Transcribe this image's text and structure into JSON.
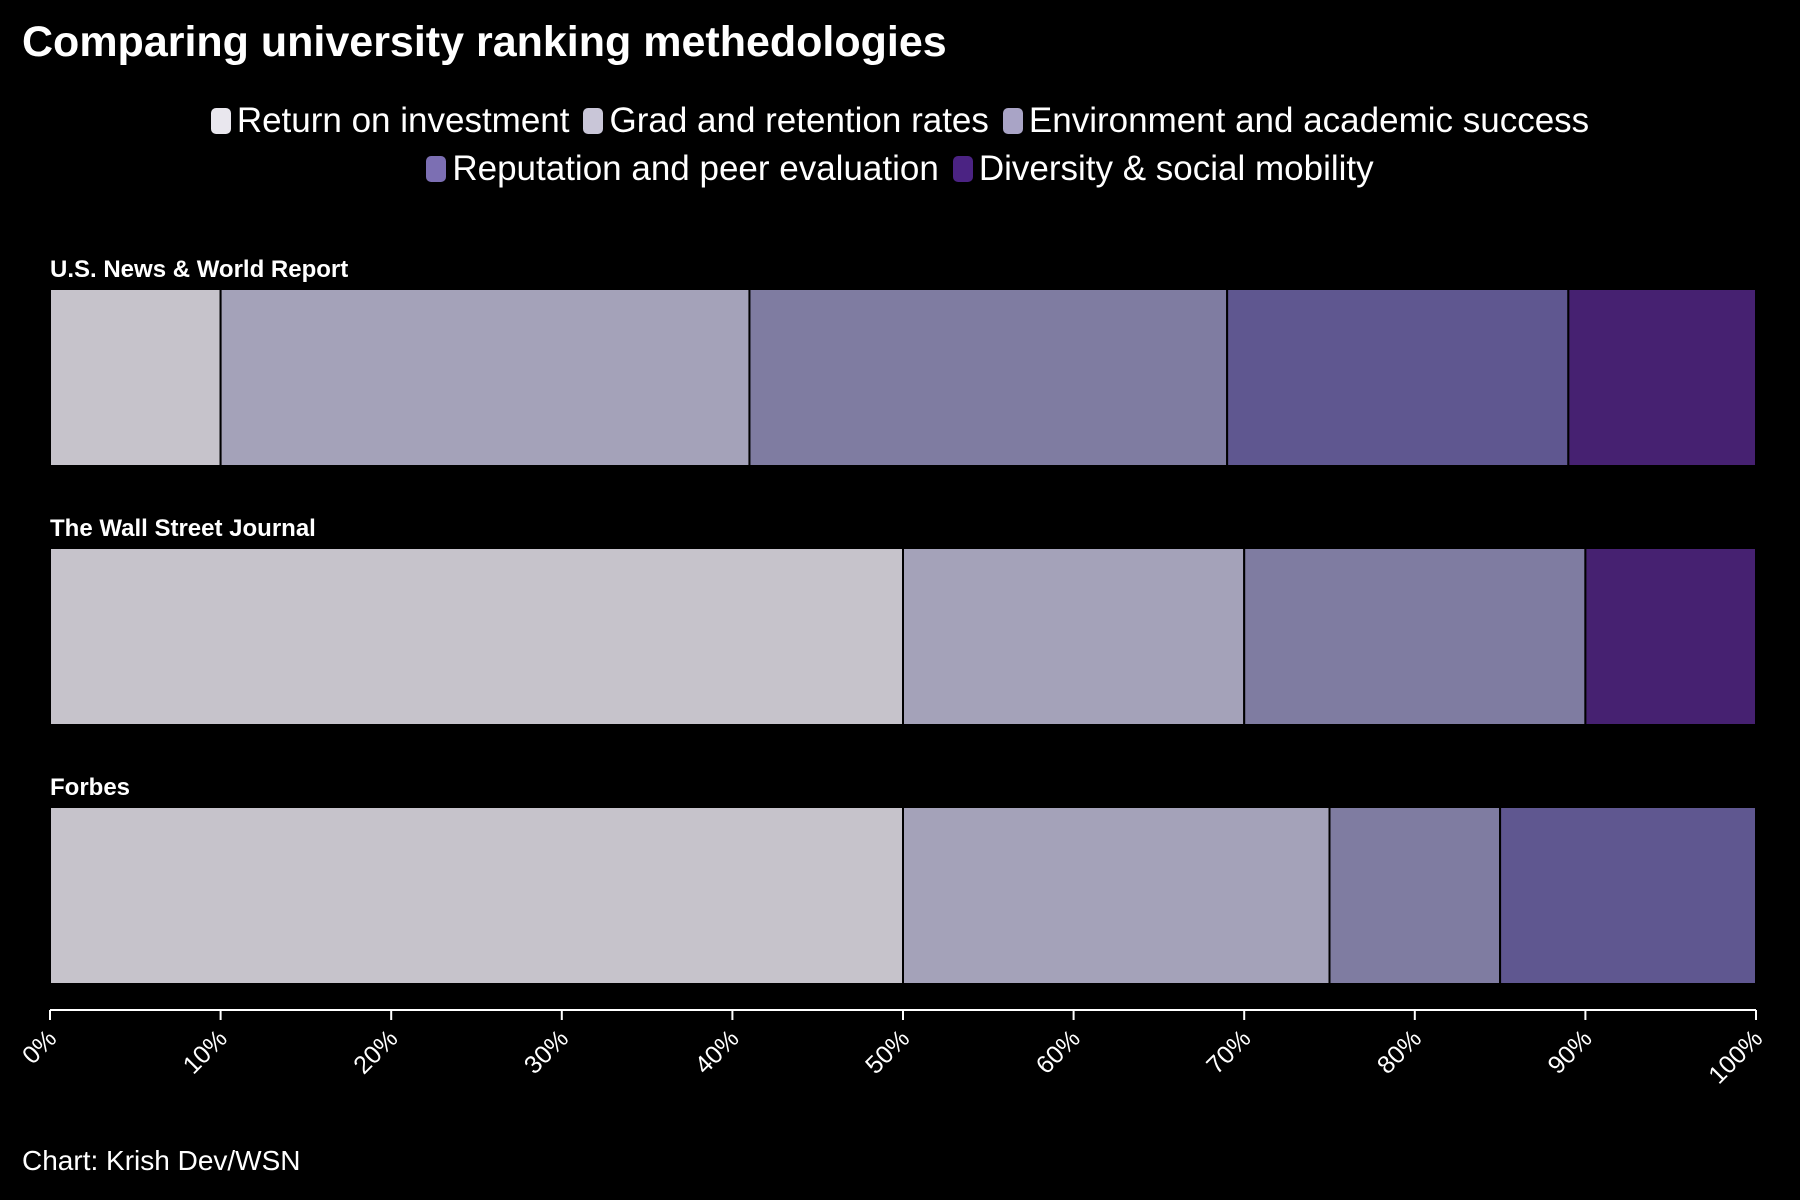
{
  "title": "Comparing university ranking methedologies",
  "footer": "Chart: Krish Dev/WSN",
  "legend": [
    {
      "label": "Return on investment",
      "color": "#e9e7ee"
    },
    {
      "label": "Grad and retention rates",
      "color": "#c9c6d8"
    },
    {
      "label": "Environment and academic success",
      "color": "#a9a4c6"
    },
    {
      "label": "Reputation and peer evaluation",
      "color": "#7c6fb3"
    },
    {
      "label": "Diversity & social mobility",
      "color": "#4b2383"
    }
  ],
  "chart_data": {
    "type": "bar",
    "orientation": "horizontal",
    "stacked": true,
    "categories": [
      "U.S. News & World Report",
      "The Wall Street Journal",
      "Forbes"
    ],
    "series": [
      {
        "name": "Return on investment",
        "color": "#c6c3cb",
        "values": [
          10,
          50,
          50
        ]
      },
      {
        "name": "Grad and retention rates",
        "color": "#a4a2b9",
        "values": [
          31,
          20,
          25
        ]
      },
      {
        "name": "Environment and academic success",
        "color": "#7f7ca1",
        "values": [
          28,
          20,
          10
        ]
      },
      {
        "name": "Reputation and peer evaluation",
        "color": "#5f5790",
        "values": [
          20,
          0,
          15
        ]
      },
      {
        "name": "Diversity & social mobility",
        "color": "#462171",
        "values": [
          11,
          10,
          0
        ]
      }
    ],
    "xlim": [
      0,
      100
    ],
    "xticks": [
      "0%",
      "10%",
      "20%",
      "30%",
      "40%",
      "50%",
      "60%",
      "70%",
      "80%",
      "90%",
      "100%"
    ],
    "xlabel": "",
    "ylabel": "",
    "grid": false,
    "legend_position": "top"
  }
}
